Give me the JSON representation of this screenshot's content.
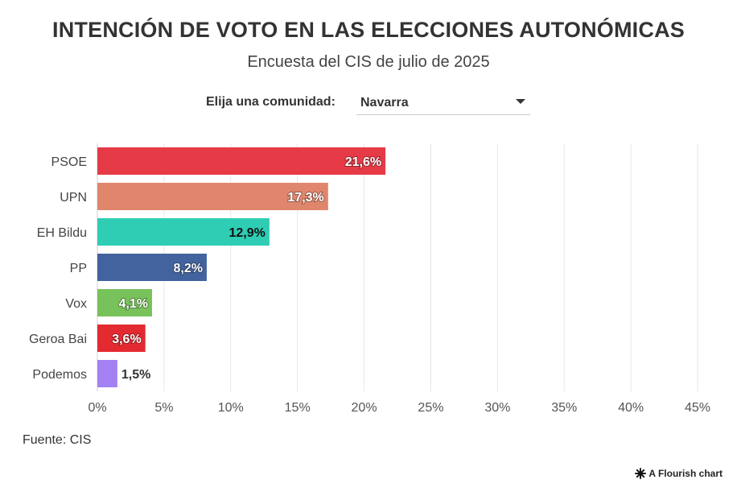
{
  "header": {
    "title": "INTENCIÓN DE VOTO EN LAS ELECCIONES AUTONÓMICAS",
    "subtitle": "Encuesta del CIS de julio de 2025"
  },
  "controls": {
    "label": "Elija una comunidad:",
    "selected": "Navarra"
  },
  "footer": {
    "source": "Fuente: CIS",
    "credit": "A Flourish chart"
  },
  "chart_data": {
    "type": "bar",
    "orientation": "horizontal",
    "title": "INTENCIÓN DE VOTO EN LAS ELECCIONES AUTONÓMICAS",
    "subtitle": "Encuesta del CIS de julio de 2025",
    "xlabel": "",
    "ylabel": "",
    "xlim": [
      0,
      45
    ],
    "xticks": [
      0,
      5,
      10,
      15,
      20,
      25,
      30,
      35,
      40,
      45
    ],
    "xtick_labels": [
      "0%",
      "5%",
      "10%",
      "15%",
      "20%",
      "25%",
      "30%",
      "35%",
      "40%",
      "45%"
    ],
    "grid": true,
    "categories": [
      "PSOE",
      "UPN",
      "EH Bildu",
      "PP",
      "Vox",
      "Geroa Bai",
      "Podemos"
    ],
    "values": [
      21.6,
      17.3,
      12.9,
      8.2,
      4.1,
      3.6,
      1.5
    ],
    "value_labels": [
      "21,6%",
      "17,3%",
      "12,9%",
      "8,2%",
      "4,1%",
      "3,6%",
      "1,5%"
    ],
    "colors": [
      "#e63a47",
      "#e0866c",
      "#2ecdb4",
      "#43639e",
      "#77c25a",
      "#e42a31",
      "#a482f4"
    ]
  }
}
